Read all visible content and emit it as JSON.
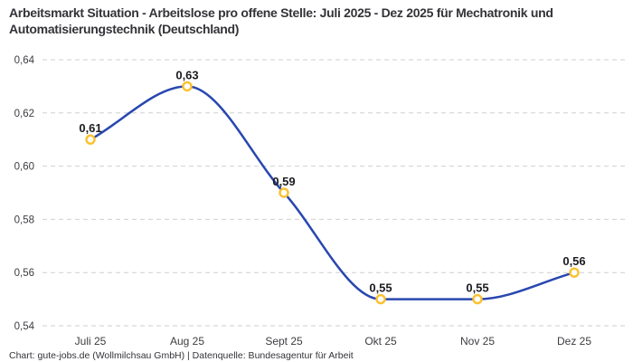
{
  "title": "Arbeitsmarkt Situation - Arbeitslose pro offene Stelle: Juli 2025 - Dez 2025 für Mechatronik und Automatisierungstechnik (Deutschland)",
  "footer": "Chart: gute-jobs.de (Wollmilchsau GmbH) | Datenquelle: Bundesagentur für Arbeit",
  "colors": {
    "line": "#2847AF",
    "marker_ring": "#FBC12D",
    "marker_fill": "#FFFFFF",
    "gridline": "#CFCFCF",
    "title_text": "#333338",
    "axis_label": "#3D3D42",
    "value_label": "#1B1B20",
    "footer_text": "#333338",
    "background": "#FFFFFF"
  },
  "chart_data": {
    "type": "line",
    "title": "Arbeitsmarkt Situation - Arbeitslose pro offene Stelle: Juli 2025 - Dez 2025 für Mechatronik und Automatisierungstechnik (Deutschland)",
    "categories": [
      "Juli 25",
      "Aug 25",
      "Sept 25",
      "Okt 25",
      "Nov 25",
      "Dez 25"
    ],
    "values": [
      0.61,
      0.63,
      0.59,
      0.55,
      0.55,
      0.56
    ],
    "point_labels": [
      "0,61",
      "0,63",
      "0,59",
      "0,55",
      "0,55",
      "0,56"
    ],
    "xlabel": "",
    "ylabel": "",
    "ylim": [
      0.54,
      0.64
    ],
    "yticks": [
      0.54,
      0.56,
      0.58,
      0.6,
      0.62,
      0.64
    ],
    "ytick_labels": [
      "0,54",
      "0,56",
      "0,58",
      "0,60",
      "0,62",
      "0,64"
    ],
    "grid": "horizontal-dashed",
    "legend": "none",
    "line_style": "smooth-monotone",
    "marker": "open-circle",
    "source": "Chart: gute-jobs.de (Wollmilchsau GmbH) | Datenquelle: Bundesagentur für Arbeit"
  }
}
